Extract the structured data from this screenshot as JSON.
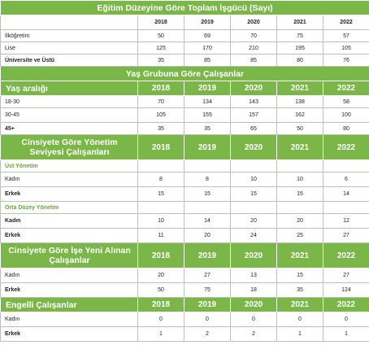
{
  "years": [
    "2018",
    "2019",
    "2020",
    "2021",
    "2022"
  ],
  "education": {
    "title": "Eğitim Düzeyine Göre Toplam İşgücü (Sayı)",
    "rows": [
      {
        "label": "İlköğretim",
        "values": [
          "50",
          "69",
          "70",
          "75",
          "57"
        ]
      },
      {
        "label": "Lise",
        "values": [
          "125",
          "170",
          "210",
          "195",
          "105"
        ]
      },
      {
        "label": "Üniversite ve Üstü",
        "values": [
          "35",
          "85",
          "85",
          "80",
          "76"
        ]
      }
    ]
  },
  "age": {
    "title": "Yaş Grubuna Göre Çalışanlar",
    "header_label": "Yaş aralığı",
    "rows": [
      {
        "label": "18-30",
        "values": [
          "70",
          "134",
          "143",
          "138",
          "58"
        ]
      },
      {
        "label": "30-45",
        "values": [
          "105",
          "155",
          "157",
          "162",
          "100"
        ]
      },
      {
        "label": "45+",
        "values": [
          "35",
          "35",
          "65",
          "50",
          "80"
        ]
      }
    ]
  },
  "management": {
    "title": "Cinsiyete Göre Yönetim Seviyesi Çalışanları",
    "top_label": "Üst Yönetim",
    "top_rows": [
      {
        "label": "Kadın",
        "values": [
          "8",
          "8",
          "10",
          "10",
          "6"
        ]
      },
      {
        "label": "Erkek",
        "values": [
          "15",
          "15",
          "15",
          "15",
          "14"
        ]
      }
    ],
    "mid_label": "Orta Düzey Yönetim",
    "mid_rows": [
      {
        "label": "Kadın",
        "values": [
          "10",
          "14",
          "20",
          "20",
          "12"
        ]
      },
      {
        "label": "Erkek",
        "values": [
          "11",
          "20",
          "24",
          "25",
          "27"
        ]
      }
    ]
  },
  "hired": {
    "title": "Cinsiyete Göre İşe Yeni Alınan Çalışanlar",
    "rows": [
      {
        "label": "Kadın",
        "values": [
          "20",
          "27",
          "13",
          "15",
          "27"
        ]
      },
      {
        "label": "Erkek",
        "values": [
          "50",
          "75",
          "18",
          "35",
          "124"
        ]
      }
    ]
  },
  "disabled": {
    "title": "Engelli Çalışanlar",
    "rows": [
      {
        "label": "Kadın",
        "values": [
          "0",
          "0",
          "0",
          "0",
          "0"
        ]
      },
      {
        "label": "Erkek",
        "values": [
          "1",
          "2",
          "2",
          "1",
          "1"
        ]
      }
    ]
  }
}
